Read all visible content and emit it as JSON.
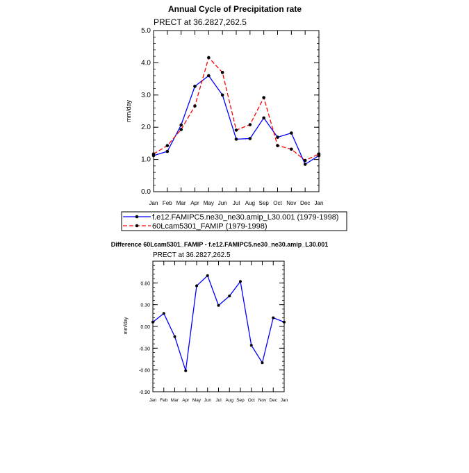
{
  "chart_data": [
    {
      "type": "line",
      "title": "Annual Cycle of Precipitation rate",
      "subtitle": "PRECT at 36.2827,262.5",
      "ylabel": "mm/day",
      "xlabel": "",
      "categories": [
        "Jan",
        "Feb",
        "Mar",
        "Apr",
        "May",
        "Jun",
        "Jul",
        "Aug",
        "Sep",
        "Oct",
        "Nov",
        "Dec",
        "Jan"
      ],
      "ylim": [
        0.0,
        5.0
      ],
      "yticks": [
        "0.0",
        "1.0",
        "2.0",
        "3.0",
        "4.0",
        "5.0"
      ],
      "series": [
        {
          "name": "f.e12.FAMIPC5.ne30_ne30.amip_L30.001 (1979-1998)",
          "color": "#0000ff",
          "dash": "solid",
          "values": [
            1.12,
            1.25,
            2.07,
            3.27,
            3.6,
            3.0,
            1.63,
            1.65,
            2.29,
            1.69,
            1.82,
            0.85,
            1.12
          ]
        },
        {
          "name": "60Lcam5301_FAMIP (1979-1998)",
          "color": "#ff0000",
          "dash": "dashed",
          "values": [
            1.17,
            1.43,
            1.93,
            2.66,
            4.16,
            3.7,
            1.91,
            2.08,
            2.92,
            1.43,
            1.32,
            0.97,
            1.17
          ]
        }
      ]
    },
    {
      "type": "line",
      "title": "Difference 60Lcam5301_FAMIP - f.e12.FAMIPC5.ne30_ne30.amip_L30.001",
      "subtitle": "PRECT at 36.2827,262.5",
      "ylabel": "mm/day",
      "xlabel": "",
      "categories": [
        "Jan",
        "Feb",
        "Mar",
        "Apr",
        "May",
        "Jun",
        "Jul",
        "Aug",
        "Sep",
        "Oct",
        "Nov",
        "Dec",
        "Jan"
      ],
      "ylim": [
        -0.9,
        0.9
      ],
      "yticks": [
        "-0.90",
        "-0.60",
        "-0.30",
        "0.00",
        "0.30",
        "0.60"
      ],
      "ytick_values": [
        -0.9,
        -0.6,
        -0.3,
        0.0,
        0.3,
        0.6
      ],
      "series": [
        {
          "name": "",
          "color": "#0000ff",
          "values": [
            0.06,
            0.18,
            -0.14,
            -0.61,
            0.56,
            0.7,
            0.29,
            0.42,
            0.62,
            -0.26,
            -0.5,
            0.12,
            0.06
          ]
        }
      ]
    }
  ]
}
